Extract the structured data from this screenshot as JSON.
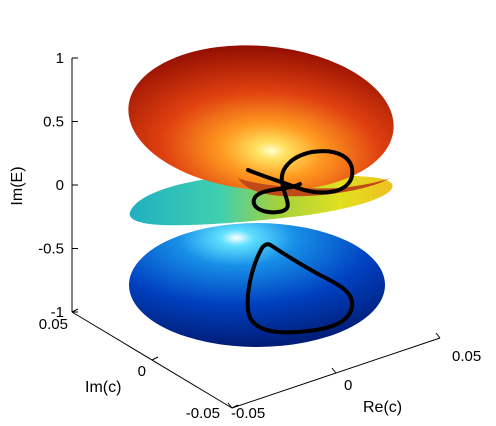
{
  "chart_data": {
    "type": "surface3d",
    "title": "",
    "xlabel": "Re(c)",
    "ylabel": "Im(c)",
    "zlabel": "Im(E)",
    "xlim": [
      -0.05,
      0.05
    ],
    "ylim": [
      -0.05,
      0.05
    ],
    "zlim": [
      -1,
      1
    ],
    "x_ticks": [
      "-0.05",
      "0",
      "0.05"
    ],
    "y_ticks": [
      "-0.05",
      "0",
      "0.05"
    ],
    "z_ticks": [
      "-1",
      "-0.5",
      "0",
      "0.5",
      "1"
    ],
    "colormap": "jet",
    "surfaces": [
      {
        "sheet": "upper",
        "z_range": [
          0.1,
          1
        ]
      },
      {
        "sheet": "middle",
        "z_range": [
          -0.1,
          0.1
        ]
      },
      {
        "sheet": "lower",
        "z_range": [
          -1,
          -0.1
        ]
      }
    ],
    "curves": [
      {
        "sheet": "upper",
        "color": "#000000",
        "shape": "closed loop"
      },
      {
        "sheet": "lower",
        "color": "#000000",
        "shape": "closed loop"
      }
    ],
    "grid": false
  }
}
